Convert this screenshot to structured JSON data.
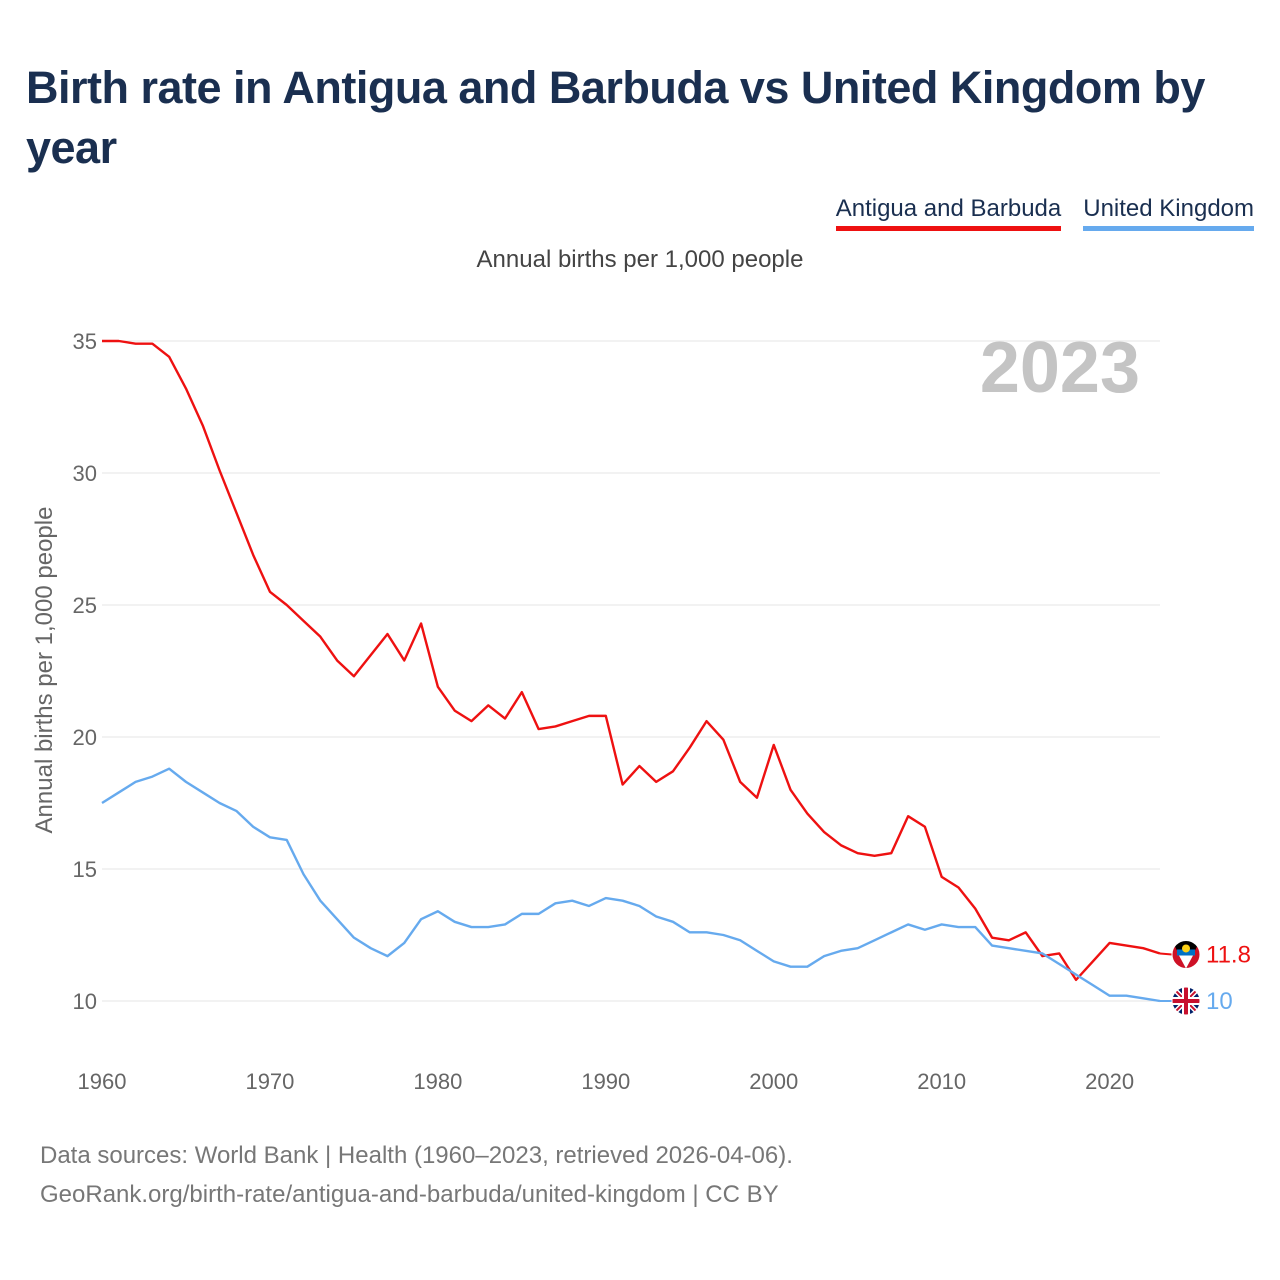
{
  "title": "Birth rate in Antigua and Barbuda vs United Kingdom by year",
  "legend": [
    {
      "label": "Antigua and Barbuda",
      "color": "#ee1111"
    },
    {
      "label": "United Kingdom",
      "color": "#66aaee"
    }
  ],
  "subtitle": "Annual births per 1,000 people",
  "year_label": "2023",
  "source": {
    "line1": "Data sources: World Bank | Health (1960–2023, retrieved 2026-04-06).",
    "line2": "GeoRank.org/birth-rate/antigua-and-barbuda/united-kingdom | CC BY"
  },
  "chart_data": {
    "type": "line",
    "ylabel": "Annual births per 1,000 people",
    "xlabel": "",
    "ylim": [
      10,
      35
    ],
    "xlim": [
      1960,
      2023
    ],
    "y_ticks": [
      10,
      15,
      20,
      25,
      30,
      35
    ],
    "x_ticks": [
      1960,
      1970,
      1980,
      1990,
      2000,
      2010,
      2020
    ],
    "grid": true,
    "x": [
      1960,
      1961,
      1962,
      1963,
      1964,
      1965,
      1966,
      1967,
      1968,
      1969,
      1970,
      1971,
      1972,
      1973,
      1974,
      1975,
      1976,
      1977,
      1978,
      1979,
      1980,
      1981,
      1982,
      1983,
      1984,
      1985,
      1986,
      1987,
      1988,
      1989,
      1990,
      1991,
      1992,
      1993,
      1994,
      1995,
      1996,
      1997,
      1998,
      1999,
      2000,
      2001,
      2002,
      2003,
      2004,
      2005,
      2006,
      2007,
      2008,
      2009,
      2010,
      2011,
      2012,
      2013,
      2014,
      2015,
      2016,
      2017,
      2018,
      2019,
      2020,
      2021,
      2022,
      2023
    ],
    "series": [
      {
        "name": "Antigua and Barbuda",
        "color": "#ee1111",
        "end_label": "11.8",
        "values": [
          35.0,
          35.0,
          34.9,
          34.9,
          34.4,
          33.2,
          31.8,
          30.1,
          28.5,
          26.9,
          25.5,
          25.0,
          24.4,
          23.8,
          22.9,
          22.3,
          23.1,
          23.9,
          22.9,
          24.3,
          21.9,
          21.0,
          20.6,
          21.2,
          20.7,
          21.7,
          20.3,
          20.4,
          20.6,
          20.8,
          20.8,
          18.2,
          18.9,
          18.3,
          18.7,
          19.6,
          20.6,
          19.9,
          18.3,
          17.7,
          19.7,
          18.0,
          17.1,
          16.4,
          15.9,
          15.6,
          15.5,
          15.6,
          17.0,
          16.6,
          14.7,
          14.3,
          13.5,
          12.4,
          12.3,
          12.6,
          11.7,
          11.8,
          10.8,
          11.5,
          12.2,
          12.1,
          12.0,
          11.8
        ]
      },
      {
        "name": "United Kingdom",
        "color": "#66aaee",
        "end_label": "10",
        "values": [
          17.5,
          17.9,
          18.3,
          18.5,
          18.8,
          18.3,
          17.9,
          17.5,
          17.2,
          16.6,
          16.2,
          16.1,
          14.8,
          13.8,
          13.1,
          12.4,
          12.0,
          11.7,
          12.2,
          13.1,
          13.4,
          13.0,
          12.8,
          12.8,
          12.9,
          13.3,
          13.3,
          13.7,
          13.8,
          13.6,
          13.9,
          13.8,
          13.6,
          13.2,
          13.0,
          12.6,
          12.6,
          12.5,
          12.3,
          11.9,
          11.5,
          11.3,
          11.3,
          11.7,
          11.9,
          12.0,
          12.3,
          12.6,
          12.9,
          12.7,
          12.9,
          12.8,
          12.8,
          12.1,
          12.0,
          11.9,
          11.8,
          11.4,
          11.0,
          10.6,
          10.2,
          10.2,
          10.1,
          10.0
        ]
      }
    ]
  }
}
